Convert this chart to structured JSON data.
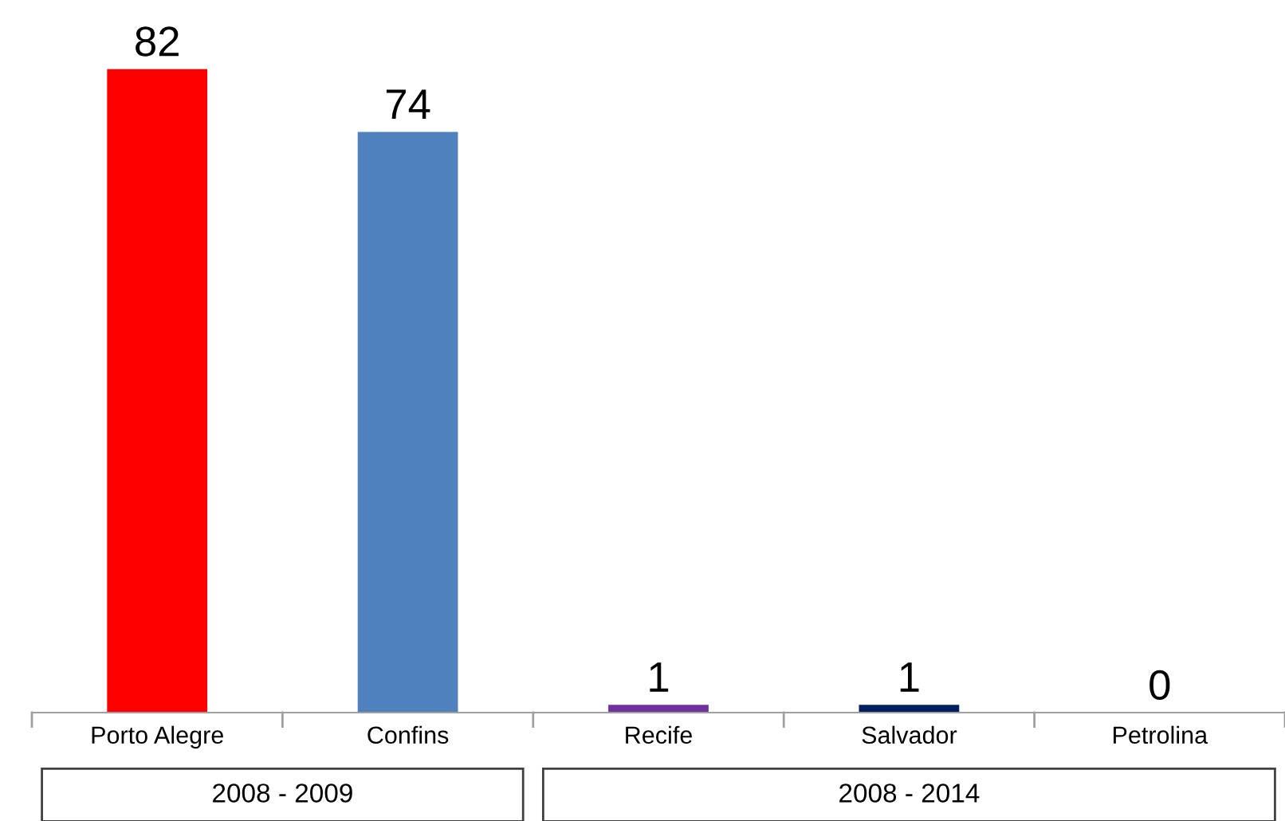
{
  "chart_data": {
    "type": "bar",
    "categories": [
      "Porto Alegre",
      "Confins",
      "Recife",
      "Salvador",
      "Petrolina"
    ],
    "values": [
      82,
      74,
      1,
      1,
      0
    ],
    "colors": [
      "#ff0000",
      "#4f81bd",
      "#7030a0",
      "#002060",
      "#002060"
    ],
    "data_labels": true,
    "grid": false,
    "legend": false,
    "annotations": [
      "2008 - 2009",
      "2008 - 2014"
    ]
  }
}
